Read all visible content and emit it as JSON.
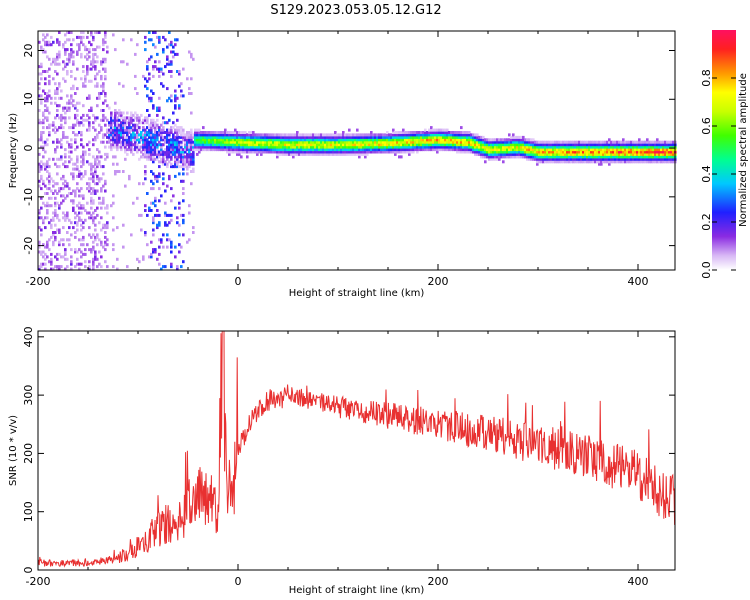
{
  "title": "S129.2023.053.05.12.G12",
  "chart_data": [
    {
      "type": "heatmap",
      "xlabel": "Height of straight line (km)",
      "ylabel": "Frequency (Hz)",
      "xlim": [
        -200,
        437
      ],
      "ylim": [
        -25,
        24
      ],
      "x_ticks": [
        -200,
        0,
        200,
        400
      ],
      "y_ticks": [
        -20,
        -10,
        0,
        10,
        20
      ],
      "grid": false,
      "colorbar": {
        "label": "Normalized spectral amplitude",
        "range": [
          0,
          1
        ],
        "ticks": [
          0.0,
          0.2,
          0.4,
          0.6,
          0.8
        ]
      },
      "ridge": {
        "x": [
          -45,
          0,
          50,
          100,
          150,
          200,
          230,
          250,
          280,
          300,
          350,
          400,
          437
        ],
        "freq_hz": [
          1.5,
          1.0,
          0.5,
          0.5,
          0.8,
          1.5,
          1.0,
          -0.5,
          0.0,
          -1.0,
          -1.0,
          -1.0,
          -1.0
        ],
        "peak_amplitude": [
          0.6,
          0.75,
          0.8,
          0.8,
          0.85,
          0.9,
          0.85,
          0.8,
          0.8,
          0.9,
          0.95,
          1.0,
          1.0
        ]
      }
    },
    {
      "type": "line",
      "xlabel": "Height of straight line (km)",
      "ylabel": "SNR (10 * v/v)",
      "xlim": [
        -200,
        437
      ],
      "ylim": [
        0,
        410
      ],
      "x_ticks": [
        -200,
        0,
        200,
        400
      ],
      "y_ticks": [
        0,
        100,
        200,
        300,
        400
      ],
      "grid": false,
      "series": [
        {
          "color": "#e83030",
          "x": [
            -200,
            -150,
            -120,
            -100,
            -80,
            -60,
            -50,
            -40,
            -30,
            -20,
            -16,
            -10,
            0,
            10,
            20,
            30,
            50,
            100,
            150,
            200,
            250,
            300,
            350,
            400,
            437
          ],
          "y": [
            12,
            12,
            20,
            40,
            70,
            90,
            100,
            120,
            140,
            80,
            400,
            120,
            200,
            250,
            270,
            290,
            300,
            280,
            265,
            250,
            235,
            215,
            195,
            165,
            115
          ]
        }
      ]
    }
  ]
}
